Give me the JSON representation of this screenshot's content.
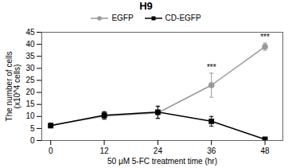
{
  "chart_data": {
    "type": "line",
    "title": "H9",
    "xlabel": "50 μM 5-FC treatment time (hr)",
    "ylabel": "The number of cells\n(x10^4 cells)",
    "x": [
      0,
      12,
      24,
      36,
      48
    ],
    "series": [
      {
        "name": "EGFP",
        "color": "#999999",
        "marker": "circle",
        "line_style": "solid",
        "values": [
          6.3,
          10.2,
          11.5,
          23.0,
          39.0
        ],
        "errors": [
          0.5,
          1.5,
          2.5,
          5.0,
          1.5
        ]
      },
      {
        "name": "CD-EGFP",
        "color": "#000000",
        "marker": "square",
        "line_style": "solid",
        "values": [
          6.2,
          10.5,
          11.8,
          8.0,
          0.5
        ],
        "errors": [
          0.5,
          1.5,
          2.5,
          2.0,
          0.3
        ]
      }
    ],
    "xlim": [
      -2,
      52
    ],
    "xticks": [
      0,
      12,
      24,
      36,
      48
    ],
    "ylim": [
      0,
      45
    ],
    "yticks": [
      0,
      5,
      10,
      15,
      20,
      25,
      30,
      35,
      40,
      45
    ],
    "annotations": [
      {
        "text": "***",
        "x": 36,
        "series": "EGFP"
      },
      {
        "text": "***",
        "x": 48,
        "series": "EGFP"
      }
    ],
    "grid": false,
    "legend": "top"
  }
}
